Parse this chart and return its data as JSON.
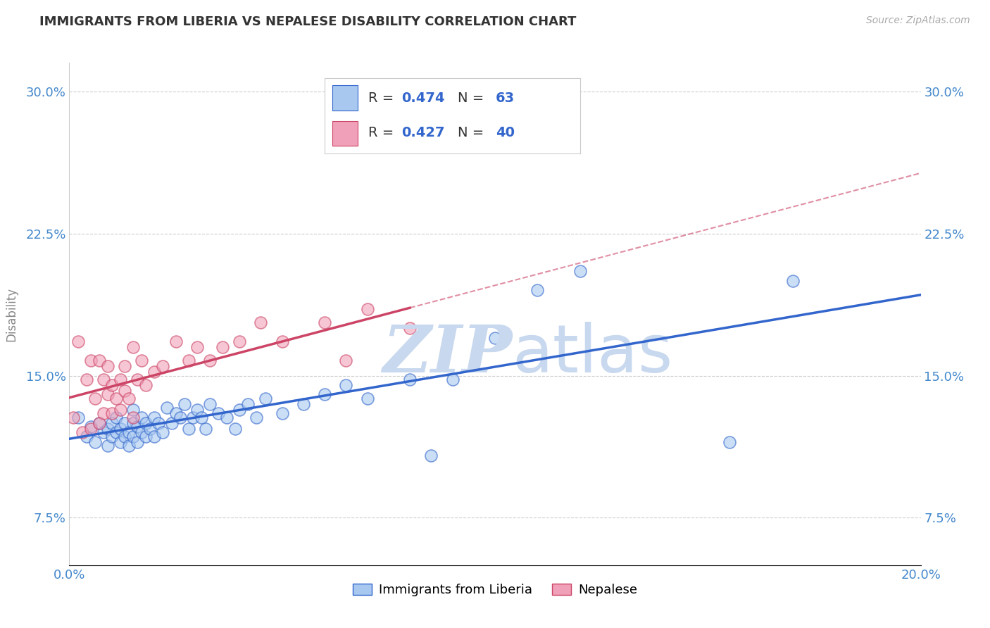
{
  "title": "IMMIGRANTS FROM LIBERIA VS NEPALESE DISABILITY CORRELATION CHART",
  "source": "Source: ZipAtlas.com",
  "xlabel": "",
  "ylabel": "Disability",
  "xlim": [
    0.0,
    0.2
  ],
  "ylim": [
    0.05,
    0.315
  ],
  "yticks": [
    0.075,
    0.15,
    0.225,
    0.3
  ],
  "ytick_labels": [
    "7.5%",
    "15.0%",
    "22.5%",
    "30.0%"
  ],
  "xticks": [
    0.0,
    0.05,
    0.1,
    0.15,
    0.2
  ],
  "xtick_labels": [
    "0.0%",
    "",
    "",
    "",
    "20.0%"
  ],
  "blue_R": 0.474,
  "blue_N": 63,
  "pink_R": 0.427,
  "pink_N": 40,
  "blue_color": "#a8c8f0",
  "pink_color": "#f0a0b8",
  "blue_line_color": "#3366cc",
  "pink_line_color": "#cc4466",
  "dashed_line_color": "#cc4466",
  "background_color": "#ffffff",
  "grid_color": "#cccccc",
  "watermark_color": "#c8d8ee",
  "blue_x": [
    0.002,
    0.004,
    0.005,
    0.006,
    0.007,
    0.008,
    0.009,
    0.009,
    0.01,
    0.01,
    0.011,
    0.011,
    0.012,
    0.012,
    0.013,
    0.013,
    0.014,
    0.014,
    0.015,
    0.015,
    0.015,
    0.016,
    0.016,
    0.017,
    0.017,
    0.018,
    0.018,
    0.019,
    0.02,
    0.02,
    0.021,
    0.022,
    0.023,
    0.024,
    0.025,
    0.026,
    0.027,
    0.028,
    0.029,
    0.03,
    0.031,
    0.032,
    0.033,
    0.035,
    0.037,
    0.039,
    0.04,
    0.042,
    0.044,
    0.046,
    0.05,
    0.055,
    0.06,
    0.065,
    0.07,
    0.08,
    0.085,
    0.09,
    0.1,
    0.11,
    0.12,
    0.155,
    0.17
  ],
  "blue_y": [
    0.128,
    0.118,
    0.123,
    0.115,
    0.125,
    0.12,
    0.113,
    0.122,
    0.118,
    0.125,
    0.12,
    0.128,
    0.115,
    0.122,
    0.118,
    0.125,
    0.113,
    0.12,
    0.118,
    0.125,
    0.132,
    0.115,
    0.123,
    0.12,
    0.128,
    0.118,
    0.125,
    0.122,
    0.118,
    0.128,
    0.125,
    0.12,
    0.133,
    0.125,
    0.13,
    0.128,
    0.135,
    0.122,
    0.128,
    0.132,
    0.128,
    0.122,
    0.135,
    0.13,
    0.128,
    0.122,
    0.132,
    0.135,
    0.128,
    0.138,
    0.13,
    0.135,
    0.14,
    0.145,
    0.138,
    0.148,
    0.108,
    0.148,
    0.17,
    0.195,
    0.205,
    0.115,
    0.2
  ],
  "pink_x": [
    0.001,
    0.002,
    0.003,
    0.004,
    0.005,
    0.005,
    0.006,
    0.007,
    0.007,
    0.008,
    0.008,
    0.009,
    0.009,
    0.01,
    0.01,
    0.011,
    0.012,
    0.012,
    0.013,
    0.013,
    0.014,
    0.015,
    0.015,
    0.016,
    0.017,
    0.018,
    0.02,
    0.022,
    0.025,
    0.028,
    0.03,
    0.033,
    0.036,
    0.04,
    0.045,
    0.05,
    0.06,
    0.065,
    0.07,
    0.08
  ],
  "pink_y": [
    0.128,
    0.168,
    0.12,
    0.148,
    0.158,
    0.122,
    0.138,
    0.158,
    0.125,
    0.148,
    0.13,
    0.14,
    0.155,
    0.13,
    0.145,
    0.138,
    0.148,
    0.132,
    0.142,
    0.155,
    0.138,
    0.165,
    0.128,
    0.148,
    0.158,
    0.145,
    0.152,
    0.155,
    0.168,
    0.158,
    0.165,
    0.158,
    0.165,
    0.168,
    0.178,
    0.168,
    0.178,
    0.158,
    0.185,
    0.175
  ]
}
